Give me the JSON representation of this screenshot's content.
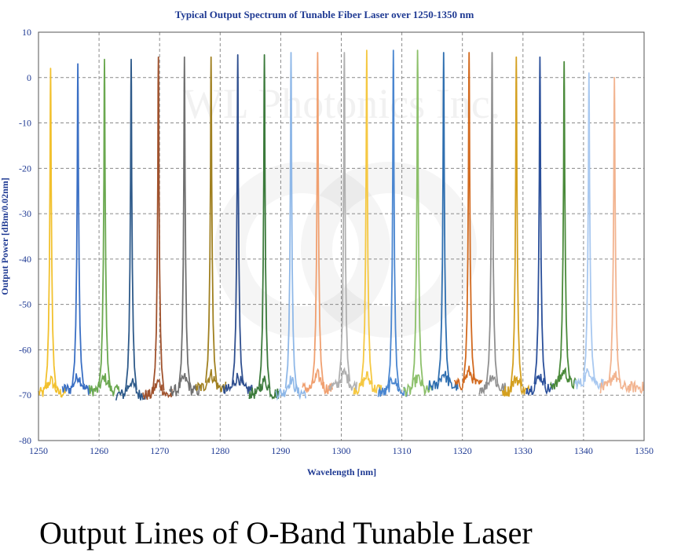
{
  "chart_data": {
    "type": "line",
    "title": "Typical Output Spectrum of Tunable Fiber Laser over 1250-1350 nm",
    "xlabel": "Wavelength [nm]",
    "ylabel": "Output Power [dBm/0.02nm]",
    "xlim": [
      1250,
      1350
    ],
    "ylim": [
      -80,
      10
    ],
    "xticks": [
      "1250",
      "1260",
      "1270",
      "1280",
      "1290",
      "1300",
      "1310",
      "1320",
      "1330",
      "1340",
      "1350"
    ],
    "yticks": [
      "10",
      "0",
      "-10",
      "-20",
      "-30",
      "-40",
      "-50",
      "-60",
      "-70",
      "-80"
    ],
    "grid": true,
    "noise_floor_dbm": -67,
    "watermark": "WL Photonics Inc.",
    "series": [
      {
        "x": 1252.0,
        "y": 2,
        "color": "#f2c12e"
      },
      {
        "x": 1256.5,
        "y": 3,
        "color": "#3a6fc4"
      },
      {
        "x": 1260.9,
        "y": 4,
        "color": "#6aa84f"
      },
      {
        "x": 1265.3,
        "y": 4,
        "color": "#2e5a8a"
      },
      {
        "x": 1269.8,
        "y": 4.5,
        "color": "#a0522d"
      },
      {
        "x": 1274.1,
        "y": 4.5,
        "color": "#707070"
      },
      {
        "x": 1278.5,
        "y": 4.5,
        "color": "#a08020"
      },
      {
        "x": 1282.9,
        "y": 5,
        "color": "#2f4f8f"
      },
      {
        "x": 1287.3,
        "y": 5,
        "color": "#3b7a3b"
      },
      {
        "x": 1291.7,
        "y": 5.5,
        "color": "#8fb8e8"
      },
      {
        "x": 1296.1,
        "y": 5.5,
        "color": "#f0a070"
      },
      {
        "x": 1300.5,
        "y": 5.5,
        "color": "#b0b0b0"
      },
      {
        "x": 1304.2,
        "y": 6,
        "color": "#f5c842"
      },
      {
        "x": 1308.6,
        "y": 6,
        "color": "#4a86d0"
      },
      {
        "x": 1312.6,
        "y": 6,
        "color": "#8cc06a"
      },
      {
        "x": 1316.9,
        "y": 5.5,
        "color": "#2f6fb0"
      },
      {
        "x": 1321.1,
        "y": 5.5,
        "color": "#d2691e"
      },
      {
        "x": 1324.9,
        "y": 5.5,
        "color": "#909090"
      },
      {
        "x": 1328.9,
        "y": 4.5,
        "color": "#d4a020"
      },
      {
        "x": 1332.8,
        "y": 4.5,
        "color": "#2a4f9a"
      },
      {
        "x": 1336.8,
        "y": 3.5,
        "color": "#4a8a3a"
      },
      {
        "x": 1340.9,
        "y": 1,
        "color": "#a8c8f0"
      },
      {
        "x": 1345.1,
        "y": 0,
        "color": "#f2b490"
      }
    ]
  },
  "caption": "Output Lines of O-Band Tunable Laser"
}
